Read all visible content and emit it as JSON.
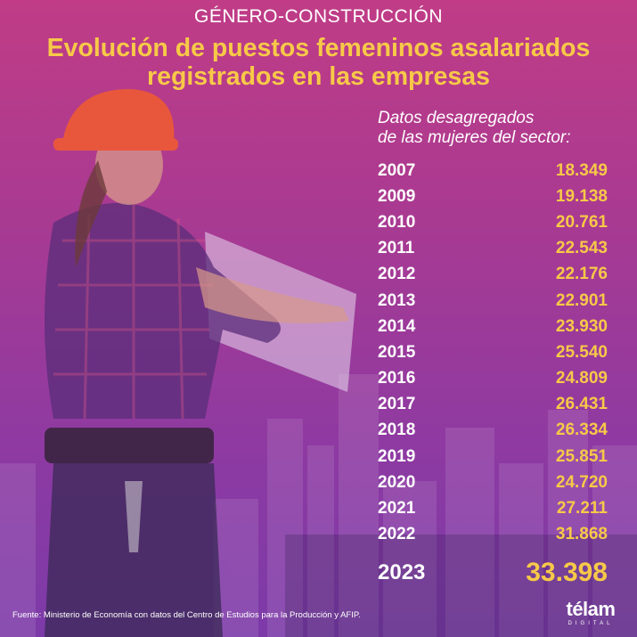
{
  "kicker": "GÉNERO-CONSTRUCCIÓN",
  "title_line1": "Evolución de puestos femeninos asalariados",
  "title_line2": "registrados en las empresas",
  "subtitle_line1": "Datos desagregados",
  "subtitle_line2": "de las mujeres del sector:",
  "rows": [
    {
      "year": "2007",
      "value": "18.349"
    },
    {
      "year": "2009",
      "value": "19.138"
    },
    {
      "year": "2010",
      "value": "20.761"
    },
    {
      "year": "2011",
      "value": "22.543"
    },
    {
      "year": "2012",
      "value": "22.176"
    },
    {
      "year": "2013",
      "value": "22.901"
    },
    {
      "year": "2014",
      "value": "23.930"
    },
    {
      "year": "2015",
      "value": "25.540"
    },
    {
      "year": "2016",
      "value": "24.809"
    },
    {
      "year": "2017",
      "value": "26.431"
    },
    {
      "year": "2018",
      "value": "26.334"
    },
    {
      "year": "2019",
      "value": "25.851"
    },
    {
      "year": "2020",
      "value": "24.720"
    },
    {
      "year": "2021",
      "value": "27.211"
    },
    {
      "year": "2022",
      "value": "31.868"
    }
  ],
  "highlight": {
    "year": "2023",
    "value": "33.398"
  },
  "source": "Fuente: Ministerio de Economía con datos del Centro de Estudios para la Producción y AFIP.",
  "logo": {
    "word": "télam",
    "sub": "DIGITAL"
  },
  "colors": {
    "accent": "#f7c948",
    "text": "#ffffff",
    "bg_top": "#c03c86",
    "bg_bottom": "#7c3aa8"
  }
}
